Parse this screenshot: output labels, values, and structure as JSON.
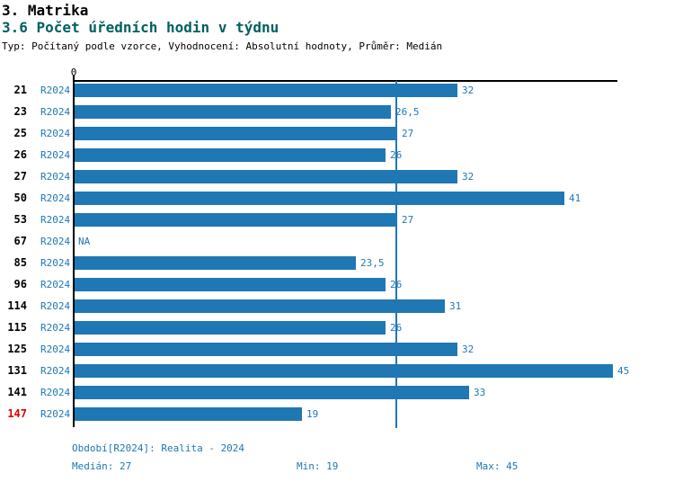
{
  "header": {
    "title": "3. Matrika",
    "subtitle": "3.6 Počet úředních hodin v týdnu",
    "meta": "Typ: Počítaný podle vzorce, Vyhodnocení: Absolutní hodnoty, Průměr: Medián"
  },
  "chart_data": {
    "type": "bar",
    "orientation": "horizontal",
    "title": "3.6 Počet úředních hodin v týdnu",
    "series_name": "R2024",
    "x_axis": {
      "origin_tick_label": "0",
      "min": 0,
      "max": 45.5,
      "grid": false
    },
    "categories": [
      "21",
      "23",
      "25",
      "26",
      "27",
      "50",
      "53",
      "67",
      "85",
      "96",
      "114",
      "115",
      "125",
      "131",
      "141",
      "147"
    ],
    "values": [
      32,
      26.5,
      27,
      26,
      32,
      41,
      27,
      null,
      23.5,
      26,
      31,
      26,
      32,
      45,
      33,
      19
    ],
    "rows": [
      {
        "id": "21",
        "period": "R2024",
        "value": 32,
        "value_label": "32",
        "highlight": false
      },
      {
        "id": "23",
        "period": "R2024",
        "value": 26.5,
        "value_label": "26,5",
        "highlight": false
      },
      {
        "id": "25",
        "period": "R2024",
        "value": 27,
        "value_label": "27",
        "highlight": false
      },
      {
        "id": "26",
        "period": "R2024",
        "value": 26,
        "value_label": "26",
        "highlight": false
      },
      {
        "id": "27",
        "period": "R2024",
        "value": 32,
        "value_label": "32",
        "highlight": false
      },
      {
        "id": "50",
        "period": "R2024",
        "value": 41,
        "value_label": "41",
        "highlight": false
      },
      {
        "id": "53",
        "period": "R2024",
        "value": 27,
        "value_label": "27",
        "highlight": false
      },
      {
        "id": "67",
        "period": "R2024",
        "value": null,
        "value_label": "NA",
        "highlight": false
      },
      {
        "id": "85",
        "period": "R2024",
        "value": 23.5,
        "value_label": "23,5",
        "highlight": false
      },
      {
        "id": "96",
        "period": "R2024",
        "value": 26,
        "value_label": "26",
        "highlight": false
      },
      {
        "id": "114",
        "period": "R2024",
        "value": 31,
        "value_label": "31",
        "highlight": false
      },
      {
        "id": "115",
        "period": "R2024",
        "value": 26,
        "value_label": "26",
        "highlight": false
      },
      {
        "id": "125",
        "period": "R2024",
        "value": 32,
        "value_label": "32",
        "highlight": false
      },
      {
        "id": "131",
        "period": "R2024",
        "value": 45,
        "value_label": "45",
        "highlight": false
      },
      {
        "id": "141",
        "period": "R2024",
        "value": 33,
        "value_label": "33",
        "highlight": false
      },
      {
        "id": "147",
        "period": "R2024",
        "value": 19,
        "value_label": "19",
        "highlight": true
      }
    ],
    "median_line_value": 27,
    "stats": {
      "median": 27,
      "min": 19,
      "max": 45
    },
    "colors": {
      "bar": "#1f77b4",
      "median_line": "#1f77b4",
      "text_blue": "#1f77b4",
      "highlight_red": "#dd0000",
      "subtitle_teal": "#006060"
    },
    "footer": {
      "period_label": "Období[R2024]: Realita - 2024",
      "median_label": "Medián: 27",
      "min_label": "Min: 19",
      "max_label": "Max: 45"
    }
  }
}
